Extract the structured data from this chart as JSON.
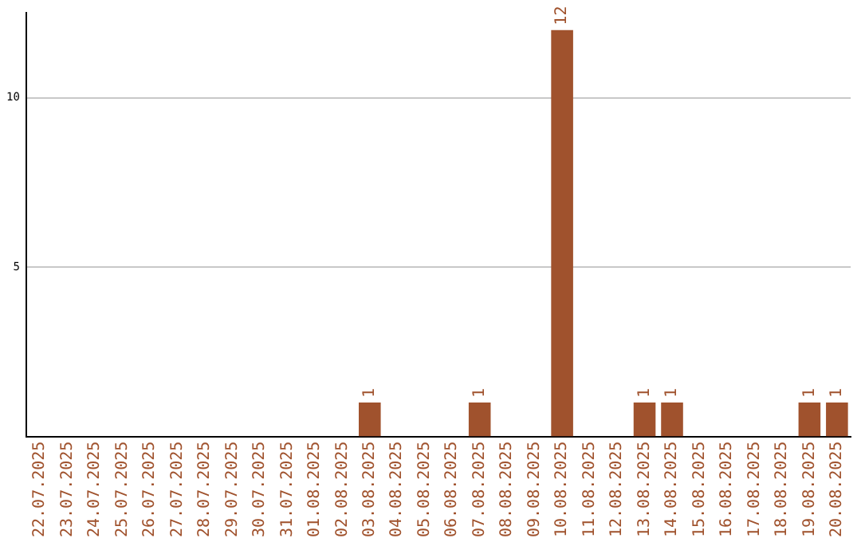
{
  "chart_data": {
    "type": "bar",
    "categories": [
      "22.07.2025",
      "23.07.2025",
      "24.07.2025",
      "25.07.2025",
      "26.07.2025",
      "27.07.2025",
      "28.07.2025",
      "29.07.2025",
      "30.07.2025",
      "31.07.2025",
      "01.08.2025",
      "02.08.2025",
      "03.08.2025",
      "04.08.2025",
      "05.08.2025",
      "06.08.2025",
      "07.08.2025",
      "08.08.2025",
      "09.08.2025",
      "10.08.2025",
      "11.08.2025",
      "12.08.2025",
      "13.08.2025",
      "14.08.2025",
      "15.08.2025",
      "16.08.2025",
      "17.08.2025",
      "18.08.2025",
      "19.08.2025",
      "20.08.2025"
    ],
    "values": [
      0,
      0,
      0,
      0,
      0,
      0,
      0,
      0,
      0,
      0,
      0,
      0,
      1,
      0,
      0,
      0,
      1,
      0,
      0,
      12,
      0,
      0,
      1,
      1,
      0,
      0,
      0,
      0,
      1,
      1
    ],
    "value_labels": [
      null,
      null,
      null,
      null,
      null,
      null,
      null,
      null,
      null,
      null,
      null,
      null,
      "1",
      null,
      null,
      null,
      "1",
      null,
      null,
      "12",
      null,
      null,
      "1",
      "1",
      null,
      null,
      null,
      null,
      "1",
      "1"
    ],
    "color": "#a0522d",
    "ylim": [
      0,
      12.5
    ],
    "yticks": [
      5,
      10
    ],
    "grid": "y",
    "legend": false
  }
}
